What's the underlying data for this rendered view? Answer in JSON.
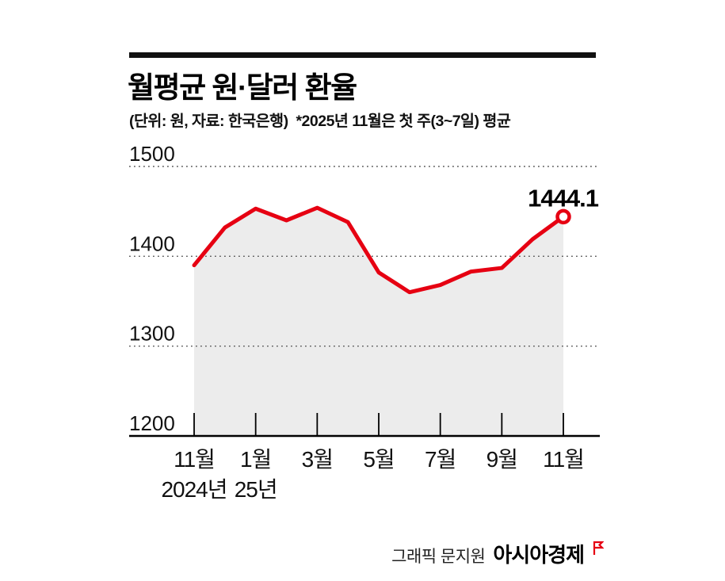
{
  "header": {
    "title": "월평균 원·달러 환율",
    "subtitle": "(단위: 원, 자료: 한국은행)  *2025년 11월은 첫 주(3~7일) 평균"
  },
  "chart_data": {
    "type": "line",
    "title": "월평균 원·달러 환율",
    "unit": "원",
    "source": "한국은행",
    "months": [
      "2024.11",
      "2024.12",
      "2025.1",
      "2025.2",
      "2025.3",
      "2025.4",
      "2025.5",
      "2025.6",
      "2025.7",
      "2025.8",
      "2025.9",
      "2025.10",
      "2025.11"
    ],
    "values": [
      1390,
      1432,
      1453,
      1440,
      1454,
      1438,
      1382,
      1360,
      1368,
      1383,
      1387,
      1419,
      1444.1
    ],
    "last_value_label": "1444.1",
    "ylim": [
      1200,
      1500
    ],
    "yticks": [
      1200,
      1300,
      1400,
      1500
    ],
    "xticks": [
      {
        "index": 0,
        "label": "11월",
        "sub": "2024년"
      },
      {
        "index": 2,
        "label": "1월",
        "sub": "25년"
      },
      {
        "index": 4,
        "label": "3월",
        "sub": ""
      },
      {
        "index": 6,
        "label": "5월",
        "sub": ""
      },
      {
        "index": 8,
        "label": "7월",
        "sub": ""
      },
      {
        "index": 10,
        "label": "9월",
        "sub": ""
      },
      {
        "index": 12,
        "label": "11월",
        "sub": ""
      }
    ],
    "grid": "dotted-horizontal",
    "legend": "none",
    "line_color": "#e60012",
    "area_color": "#ececec",
    "axis_color": "#000000",
    "marker": "open-circle-on-last-point"
  },
  "footer": {
    "credit": "그래픽 문지원",
    "brand": "아시아경제"
  }
}
